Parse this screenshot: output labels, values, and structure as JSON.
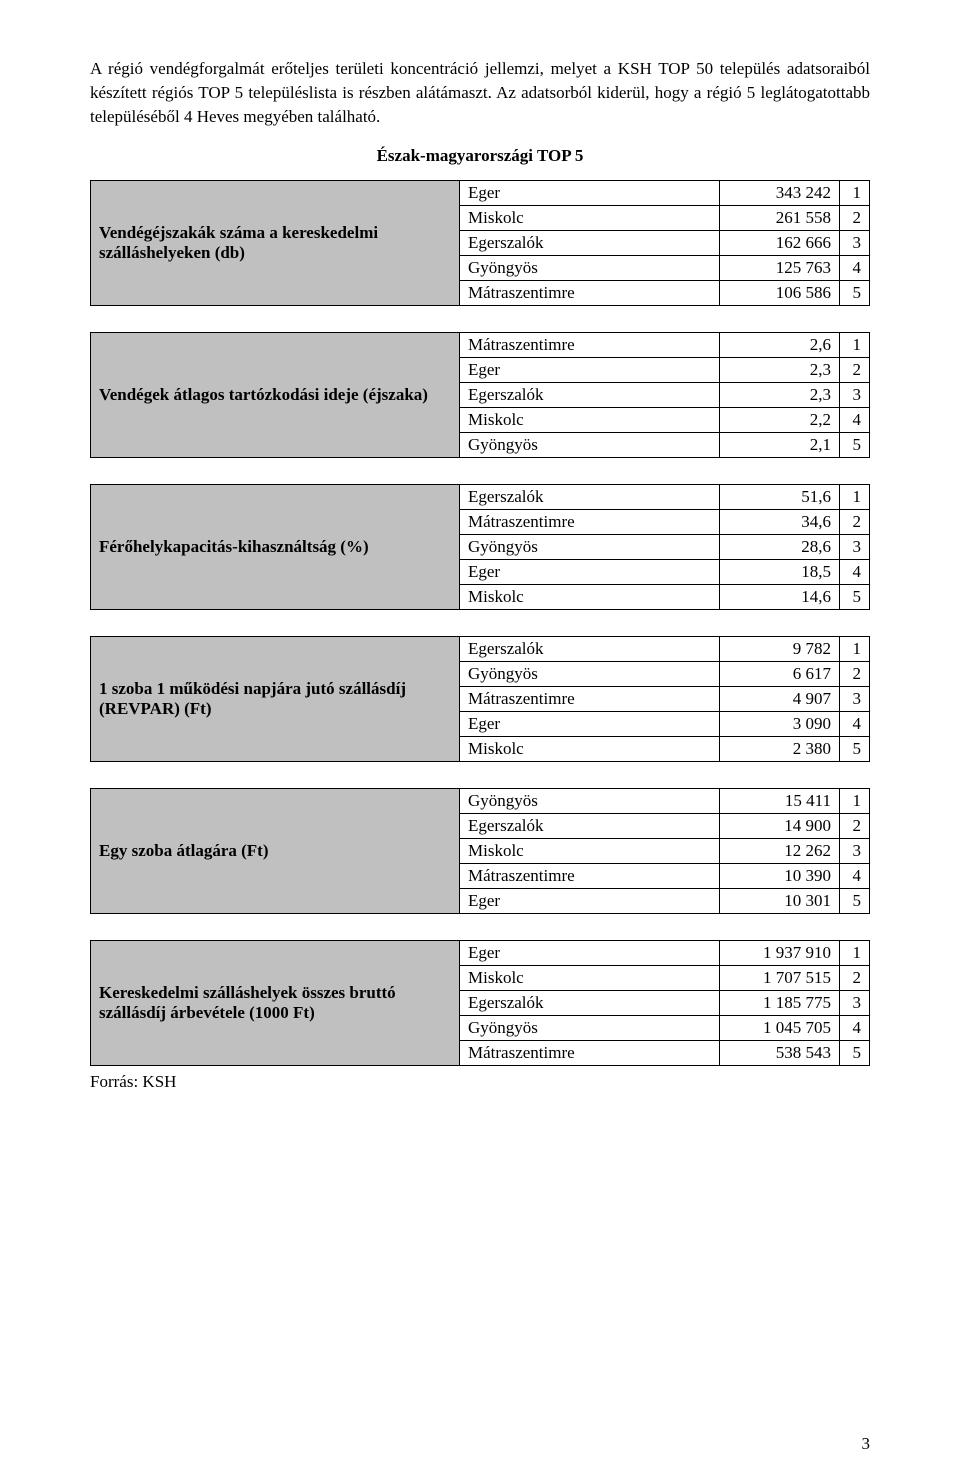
{
  "intro": "A régió vendégforgalmát erőteljes területi koncentráció jellemzi, melyet a KSH TOP 50 település adatsoraiból készített régiós TOP 5 településlista is részben alátámaszt. Az adatsorból kiderül, hogy a régió 5 leglátogatottabb településéből 4 Heves megyében található.",
  "title": "Észak-magyarországi TOP 5",
  "source": "Forrás: KSH",
  "page_number": "3",
  "colors": {
    "header_bg": "#c0c0c0",
    "border": "#000000",
    "text": "#000000",
    "page_bg": "#ffffff"
  },
  "tables": [
    {
      "label": "Vendégéjszakák száma a kereskedelmi szálláshelyeken (db)",
      "rows": [
        {
          "city": "Eger",
          "value": "343 242",
          "rank": "1"
        },
        {
          "city": "Miskolc",
          "value": "261 558",
          "rank": "2"
        },
        {
          "city": "Egerszalók",
          "value": "162 666",
          "rank": "3"
        },
        {
          "city": "Gyöngyös",
          "value": "125 763",
          "rank": "4"
        },
        {
          "city": "Mátraszentimre",
          "value": "106 586",
          "rank": "5"
        }
      ]
    },
    {
      "label": "Vendégek átlagos tartózkodási ideje (éjszaka)",
      "rows": [
        {
          "city": "Mátraszentimre",
          "value": "2,6",
          "rank": "1"
        },
        {
          "city": "Eger",
          "value": "2,3",
          "rank": "2"
        },
        {
          "city": "Egerszalók",
          "value": "2,3",
          "rank": "3"
        },
        {
          "city": "Miskolc",
          "value": "2,2",
          "rank": "4"
        },
        {
          "city": "Gyöngyös",
          "value": "2,1",
          "rank": "5"
        }
      ]
    },
    {
      "label": "Férőhelykapacitás-kihasználtság (%)",
      "rows": [
        {
          "city": "Egerszalók",
          "value": "51,6",
          "rank": "1"
        },
        {
          "city": "Mátraszentimre",
          "value": "34,6",
          "rank": "2"
        },
        {
          "city": "Gyöngyös",
          "value": "28,6",
          "rank": "3"
        },
        {
          "city": "Eger",
          "value": "18,5",
          "rank": "4"
        },
        {
          "city": "Miskolc",
          "value": "14,6",
          "rank": "5"
        }
      ]
    },
    {
      "label": "1 szoba 1 működési napjára jutó szállásdíj (REVPAR) (Ft)",
      "rows": [
        {
          "city": "Egerszalók",
          "value": "9 782",
          "rank": "1"
        },
        {
          "city": "Gyöngyös",
          "value": "6 617",
          "rank": "2"
        },
        {
          "city": "Mátraszentimre",
          "value": "4 907",
          "rank": "3"
        },
        {
          "city": "Eger",
          "value": "3 090",
          "rank": "4"
        },
        {
          "city": "Miskolc",
          "value": "2 380",
          "rank": "5"
        }
      ]
    },
    {
      "label": "Egy szoba átlagára (Ft)",
      "rows": [
        {
          "city": "Gyöngyös",
          "value": "15 411",
          "rank": "1"
        },
        {
          "city": "Egerszalók",
          "value": "14 900",
          "rank": "2"
        },
        {
          "city": "Miskolc",
          "value": "12 262",
          "rank": "3"
        },
        {
          "city": "Mátraszentimre",
          "value": "10 390",
          "rank": "4"
        },
        {
          "city": "Eger",
          "value": "10 301",
          "rank": "5"
        }
      ]
    },
    {
      "label": "Kereskedelmi szálláshelyek összes bruttó szállásdíj árbevétele (1000 Ft)",
      "rows": [
        {
          "city": "Eger",
          "value": "1 937 910",
          "rank": "1"
        },
        {
          "city": "Miskolc",
          "value": "1 707 515",
          "rank": "2"
        },
        {
          "city": "Egerszalók",
          "value": "1 185 775",
          "rank": "3"
        },
        {
          "city": "Gyöngyös",
          "value": "1 045 705",
          "rank": "4"
        },
        {
          "city": "Mátraszentimre",
          "value": "538 543",
          "rank": "5"
        }
      ]
    }
  ]
}
